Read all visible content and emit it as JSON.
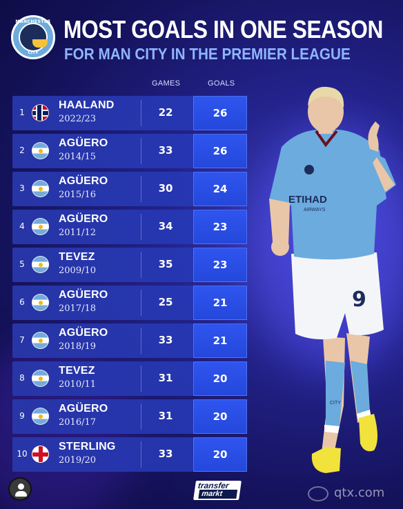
{
  "header": {
    "crest_top_text": "MANCHESTER",
    "crest_bottom_text": "CITY",
    "title": "MOST GOALS IN ONE SEASON",
    "subtitle": "FOR MAN CITY IN THE PREMIER LEAGUE"
  },
  "columns": {
    "games": "GAMES",
    "goals": "GOALS"
  },
  "rows": [
    {
      "rank": "1",
      "flag": "norway-flag-icon",
      "name": "HAALAND",
      "season": "2022/23",
      "games": "22",
      "goals": "26"
    },
    {
      "rank": "2",
      "flag": "argentina-flag-icon",
      "name": "AGÜERO",
      "season": "2014/15",
      "games": "33",
      "goals": "26"
    },
    {
      "rank": "3",
      "flag": "argentina-flag-icon",
      "name": "AGÜERO",
      "season": "2015/16",
      "games": "30",
      "goals": "24"
    },
    {
      "rank": "4",
      "flag": "argentina-flag-icon",
      "name": "AGÜERO",
      "season": "2011/12",
      "games": "34",
      "goals": "23"
    },
    {
      "rank": "5",
      "flag": "argentina-flag-icon",
      "name": "TEVEZ",
      "season": "2009/10",
      "games": "35",
      "goals": "23"
    },
    {
      "rank": "6",
      "flag": "argentina-flag-icon",
      "name": "AGÜERO",
      "season": "2017/18",
      "games": "25",
      "goals": "21"
    },
    {
      "rank": "7",
      "flag": "argentina-flag-icon",
      "name": "AGÜERO",
      "season": "2018/19",
      "games": "33",
      "goals": "21"
    },
    {
      "rank": "8",
      "flag": "argentina-flag-icon",
      "name": "TEVEZ",
      "season": "2010/11",
      "games": "31",
      "goals": "20"
    },
    {
      "rank": "9",
      "flag": "argentina-flag-icon",
      "name": "AGÜERO",
      "season": "2016/17",
      "games": "31",
      "goals": "20"
    },
    {
      "rank": "10",
      "flag": "england-flag-icon",
      "name": "STERLING",
      "season": "2019/20",
      "games": "33",
      "goals": "20"
    }
  ],
  "player": {
    "shirt_sponsor": "ETIHAD",
    "shirt_sponsor_sub": "AIRWAYS",
    "shirt_number": "9",
    "shorts_text": "CITY"
  },
  "footer": {
    "logo_line1": "transfer",
    "logo_line2": "markt",
    "watermark": "qtx.com"
  },
  "colors": {
    "accent": "#2f55ef",
    "subtitle": "#8fb5ff",
    "card": "#2837aa",
    "shirt": "#6cabdd"
  }
}
